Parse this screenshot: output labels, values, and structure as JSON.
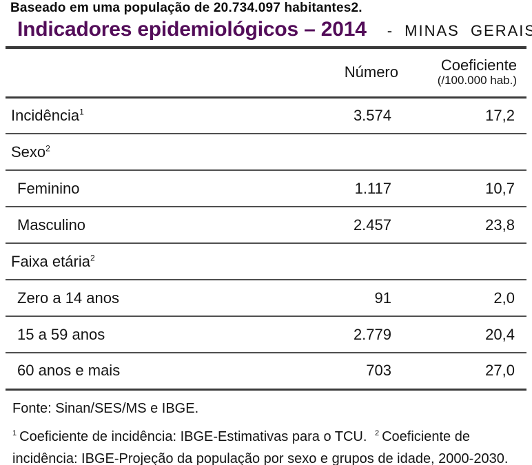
{
  "page": {
    "intro_line": "Baseado em uma população de 20.734.097 habitantes2.",
    "title": "Indicadores epidemiológicos – 2014",
    "title_suffix": "- MINAS GERAIS",
    "accent_color": "#530d59",
    "rule_color": "#3a3a3a"
  },
  "table": {
    "header": {
      "numero": "Número",
      "coeficiente": "Coeficiente",
      "coeficiente_sub": "(/100.000 hab.)"
    },
    "rows": [
      {
        "label": "Incidência",
        "sup": "1",
        "numero": "3.574",
        "coeficiente": "17,2"
      },
      {
        "label": "Sexo",
        "sup": "2",
        "numero": "",
        "coeficiente": ""
      },
      {
        "label": "Feminino",
        "numero": "1.117",
        "coeficiente": "10,7"
      },
      {
        "label": "Masculino",
        "numero": "2.457",
        "coeficiente": "23,8"
      },
      {
        "label": "Faixa etária",
        "sup": "2",
        "numero": "",
        "coeficiente": ""
      },
      {
        "label": "Zero a 14 anos",
        "numero": "91",
        "coeficiente": "2,0"
      },
      {
        "label": "15 a 59 anos",
        "numero": "2.779",
        "coeficiente": "20,4"
      },
      {
        "label": "60 anos e mais",
        "numero": "703",
        "coeficiente": "27,0"
      }
    ],
    "source": "Fonte: Sinan/SES/MS e IBGE.",
    "footnotes": {
      "fn1_sup": "1",
      "fn1_text": "Coeficiente de incidência: IBGE-Estimativas para o TCU.",
      "fn2_sup": "2",
      "fn2_text": "Coeficiente de incidência: IBGE-Projeção da população por sexo e grupos de idade, 2000-2030."
    }
  }
}
